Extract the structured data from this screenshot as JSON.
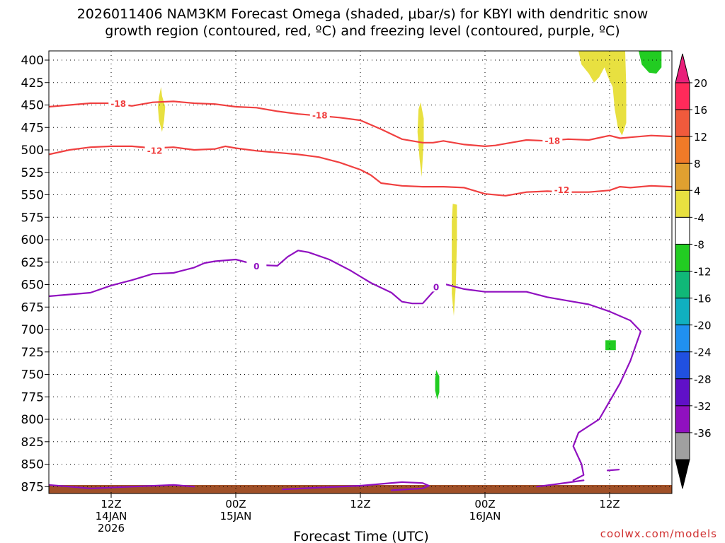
{
  "chart_data": {
    "type": "heatmap",
    "title_line1": "2026011406 NAM3KM Forecast Omega (shaded, μbar/s) for KBYI with dendritic snow",
    "title_line2": "growth region (contoured, red, ºC) and freezing level (contoured, purple, ºC)",
    "xlabel": "Forecast Time (UTC)",
    "watermark": "coolwx.com/models",
    "x_unit": "hours since 2026-01-14 06Z",
    "xlim": [
      0,
      60
    ],
    "ylim": [
      400,
      885
    ],
    "y_reverse": true,
    "x_ticks": [
      {
        "x": 6,
        "lines": [
          "12Z",
          "14JAN",
          "2026"
        ]
      },
      {
        "x": 18,
        "lines": [
          "00Z",
          "15JAN"
        ]
      },
      {
        "x": 30,
        "lines": [
          "12Z"
        ]
      },
      {
        "x": 42,
        "lines": [
          "00Z",
          "16JAN"
        ]
      },
      {
        "x": 54,
        "lines": [
          "12Z"
        ]
      }
    ],
    "y_ticks": [
      400,
      425,
      450,
      475,
      500,
      525,
      550,
      575,
      600,
      625,
      650,
      675,
      700,
      725,
      750,
      775,
      800,
      825,
      850,
      875
    ],
    "colorbar": {
      "labels": [
        "20",
        "16",
        "12",
        "8",
        "4",
        "-4",
        "-8",
        "-12",
        "-16",
        "-20",
        "-24",
        "-28",
        "-32",
        "-36"
      ],
      "colors": [
        "#ff2a5a",
        "#f05a3c",
        "#f07a28",
        "#e0a030",
        "#e8e040",
        "#ffffff",
        "#22cc22",
        "#10b878",
        "#10b0c0",
        "#2090f0",
        "#2050e0",
        "#6010c8",
        "#9010c0",
        "#a0a0a0"
      ],
      "top_arrow_color": "#e8207a",
      "bottom_arrow_color": "#000000"
    },
    "colors": {
      "snow_growth": "#f04040",
      "freezing_level": "#9010c0",
      "omega_pos4": "#e8e040",
      "omega_neg4": "#22cc22",
      "terrain": "#a05028"
    },
    "contours": [
      {
        "label": "-18",
        "color": "snow_growth",
        "label_positions": [
          [
            6.7,
            449
          ],
          [
            26.1,
            462
          ],
          [
            48.5,
            490
          ]
        ],
        "points": [
          [
            0,
            452
          ],
          [
            2,
            450
          ],
          [
            4,
            448
          ],
          [
            6,
            448
          ],
          [
            8,
            451
          ],
          [
            10,
            447
          ],
          [
            12,
            446
          ],
          [
            14,
            448
          ],
          [
            16,
            449
          ],
          [
            18,
            452
          ],
          [
            20,
            453
          ],
          [
            22,
            457
          ],
          [
            24,
            460
          ],
          [
            26,
            462
          ],
          [
            28,
            464
          ],
          [
            30,
            467
          ],
          [
            32,
            477
          ],
          [
            34,
            488
          ],
          [
            36,
            492
          ],
          [
            37,
            492
          ],
          [
            38,
            490
          ],
          [
            40,
            494
          ],
          [
            42,
            496
          ],
          [
            43,
            495
          ],
          [
            44,
            493
          ],
          [
            46,
            489
          ],
          [
            48,
            490
          ],
          [
            50,
            488
          ],
          [
            52,
            489
          ],
          [
            54,
            484
          ],
          [
            55,
            487
          ],
          [
            56,
            486
          ],
          [
            58,
            484
          ],
          [
            60,
            485
          ]
        ]
      },
      {
        "label": "-12",
        "color": "snow_growth",
        "label_positions": [
          [
            10.2,
            501
          ],
          [
            49.4,
            545
          ]
        ],
        "points": [
          [
            0,
            505
          ],
          [
            2,
            500
          ],
          [
            4,
            497
          ],
          [
            6,
            496
          ],
          [
            8,
            496
          ],
          [
            10,
            498
          ],
          [
            12,
            497
          ],
          [
            14,
            500
          ],
          [
            16,
            499
          ],
          [
            17,
            496
          ],
          [
            18,
            498
          ],
          [
            20,
            501
          ],
          [
            22,
            503
          ],
          [
            24,
            505
          ],
          [
            26,
            508
          ],
          [
            28,
            514
          ],
          [
            30,
            522
          ],
          [
            31,
            528
          ],
          [
            32,
            537
          ],
          [
            34,
            540
          ],
          [
            36,
            541
          ],
          [
            38,
            541
          ],
          [
            40,
            542
          ],
          [
            42,
            549
          ],
          [
            44,
            551
          ],
          [
            46,
            547
          ],
          [
            48,
            546
          ],
          [
            50,
            547
          ],
          [
            52,
            547
          ],
          [
            54,
            545
          ],
          [
            55,
            541
          ],
          [
            56,
            542
          ],
          [
            58,
            540
          ],
          [
            60,
            541
          ]
        ]
      },
      {
        "label": "0",
        "color": "freezing_level",
        "label_positions": [
          [
            20,
            630
          ],
          [
            37.3,
            653
          ]
        ],
        "points": [
          [
            0,
            663
          ],
          [
            2,
            661
          ],
          [
            4,
            659
          ],
          [
            6,
            651
          ],
          [
            8,
            645
          ],
          [
            10,
            638
          ],
          [
            12,
            637
          ],
          [
            14,
            631
          ],
          [
            15,
            626
          ],
          [
            16,
            624
          ],
          [
            18,
            622
          ],
          [
            20,
            628
          ],
          [
            22,
            629
          ],
          [
            23,
            619
          ],
          [
            24,
            612
          ],
          [
            25,
            614
          ],
          [
            27,
            622
          ],
          [
            29,
            634
          ],
          [
            31,
            648
          ],
          [
            33,
            659
          ],
          [
            34,
            669
          ],
          [
            35,
            671
          ],
          [
            36,
            671
          ],
          [
            37,
            658
          ],
          [
            38,
            649
          ],
          [
            40,
            655
          ],
          [
            42,
            658
          ],
          [
            44,
            658
          ],
          [
            46,
            658
          ],
          [
            48,
            664
          ],
          [
            50,
            668
          ],
          [
            52,
            672
          ],
          [
            54,
            680
          ],
          [
            56,
            690
          ],
          [
            57,
            702
          ],
          [
            56,
            735
          ],
          [
            55,
            760
          ],
          [
            54,
            780
          ],
          [
            53,
            800
          ],
          [
            51,
            815
          ],
          [
            50.5,
            830
          ],
          [
            51.3,
            850
          ],
          [
            51.5,
            862
          ],
          [
            50.5,
            868
          ]
        ]
      },
      {
        "label": "",
        "color": "freezing_level",
        "label_positions": [],
        "points": [
          [
            0,
            873
          ],
          [
            4,
            877
          ],
          [
            8,
            875
          ],
          [
            12,
            873
          ],
          [
            14,
            875
          ]
        ]
      },
      {
        "label": "",
        "color": "freezing_level",
        "label_positions": [],
        "points": [
          [
            22.5,
            878
          ],
          [
            26,
            876
          ],
          [
            30,
            874
          ],
          [
            34,
            870
          ],
          [
            36,
            871
          ],
          [
            36.6,
            874
          ],
          [
            36,
            877
          ],
          [
            33,
            879
          ]
        ]
      },
      {
        "label": "",
        "color": "freezing_level",
        "label_positions": [],
        "points": [
          [
            47,
            875
          ],
          [
            49,
            872
          ],
          [
            51.5,
            868
          ]
        ]
      },
      {
        "label": "",
        "color": "freezing_level",
        "label_positions": [],
        "points": [
          [
            53.8,
            857
          ],
          [
            54.9,
            856
          ]
        ]
      }
    ],
    "omega_regions": [
      {
        "value": "pos4",
        "points": [
          [
            10.9,
            440
          ],
          [
            11.2,
            452
          ],
          [
            11.1,
            467
          ],
          [
            10.9,
            480
          ],
          [
            10.6,
            467
          ],
          [
            10.5,
            452
          ],
          [
            10.6,
            441
          ],
          [
            10.8,
            430
          ]
        ]
      },
      {
        "value": "pos4",
        "points": [
          [
            35.8,
            447
          ],
          [
            36.1,
            465
          ],
          [
            36.1,
            490
          ],
          [
            35.9,
            530
          ],
          [
            35.7,
            510
          ],
          [
            35.5,
            480
          ],
          [
            35.6,
            455
          ]
        ]
      },
      {
        "value": "pos4",
        "points": [
          [
            38.9,
            560
          ],
          [
            39.3,
            561
          ],
          [
            39.3,
            600
          ],
          [
            39.2,
            650
          ],
          [
            39.0,
            685
          ],
          [
            38.8,
            660
          ],
          [
            38.8,
            620
          ],
          [
            38.8,
            580
          ]
        ]
      },
      {
        "value": "pos4",
        "points": [
          [
            51,
            390
          ],
          [
            55.5,
            390
          ],
          [
            55.6,
            430
          ],
          [
            55.6,
            470
          ],
          [
            55.2,
            484
          ],
          [
            54.8,
            475
          ],
          [
            54.5,
            455
          ],
          [
            54.3,
            430
          ],
          [
            53.9,
            420
          ],
          [
            53.5,
            408
          ],
          [
            53,
            419
          ],
          [
            52.5,
            425
          ],
          [
            52,
            415
          ],
          [
            51.3,
            405
          ]
        ]
      },
      {
        "value": "neg4",
        "points": [
          [
            56.8,
            390
          ],
          [
            59,
            390
          ],
          [
            59,
            408
          ],
          [
            58.5,
            415
          ],
          [
            57.8,
            414
          ],
          [
            57.1,
            405
          ]
        ]
      },
      {
        "value": "neg4",
        "points": [
          [
            53.6,
            712
          ],
          [
            54.6,
            712
          ],
          [
            54.6,
            723
          ],
          [
            53.6,
            723
          ]
        ]
      },
      {
        "value": "neg4",
        "points": [
          [
            37.3,
            745
          ],
          [
            37.6,
            752
          ],
          [
            37.6,
            770
          ],
          [
            37.4,
            778
          ],
          [
            37.2,
            768
          ],
          [
            37.2,
            755
          ]
        ]
      }
    ]
  }
}
